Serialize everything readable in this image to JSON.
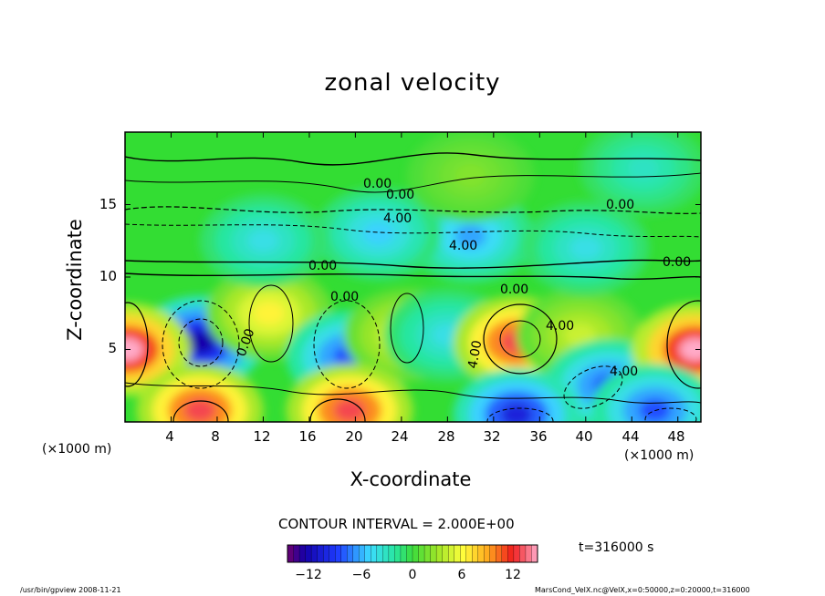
{
  "title": "zonal velocity",
  "axes": {
    "xlabel": "X-coordinate",
    "ylabel": "Z-coordinate",
    "x_unit": "(×1000 m)",
    "y_unit": "(×1000 m)",
    "xticks": [
      "4",
      "8",
      "12",
      "16",
      "20",
      "24",
      "28",
      "32",
      "36",
      "40",
      "44",
      "48"
    ],
    "yticks": [
      "5",
      "10",
      "15"
    ]
  },
  "contour_interval_text": "CONTOUR INTERVAL = 2.000E+00",
  "time_text": "t=316000 s",
  "colorbar": {
    "labels": [
      "−12",
      "−6",
      "0",
      "6",
      "12"
    ]
  },
  "footer": {
    "left": "/usr/bin/gpview   2008-11-21",
    "right": "MarsCond_VelX.nc@VelX,x=0:50000,z=0:20000,t=316000"
  },
  "contour_labels": [
    "0.00",
    "0.00",
    "4.00",
    "4.00",
    "0.00",
    "0.00",
    "0.00",
    "4.00",
    "4.00",
    "0.00",
    "4.00",
    "0.00",
    "0.00"
  ],
  "chart_data": {
    "type": "heatmap",
    "title": "zonal velocity",
    "xlabel": "X-coordinate",
    "ylabel": "Z-coordinate",
    "x_range": [
      0,
      50
    ],
    "y_range": [
      0,
      20
    ],
    "x_ticks": [
      4,
      8,
      12,
      16,
      20,
      24,
      28,
      32,
      36,
      40,
      44,
      48
    ],
    "y_ticks": [
      5,
      10,
      15
    ],
    "color_range": [
      -14,
      14
    ],
    "contour_interval": 2.0,
    "colorbar_ticks": [
      -12,
      -6,
      0,
      6,
      12
    ],
    "features": [
      {
        "x": 6.5,
        "z": 5.5,
        "value": -12
      },
      {
        "x": 12.5,
        "z": 7.5,
        "value": 6
      },
      {
        "x": 19.5,
        "z": 4.5,
        "value": -8
      },
      {
        "x": 24.5,
        "z": 6.0,
        "value": 5
      },
      {
        "x": 28.0,
        "z": 6.0,
        "value": -4
      },
      {
        "x": 34.0,
        "z": 5.5,
        "value": 12
      },
      {
        "x": 39.5,
        "z": 6.0,
        "value": 4
      },
      {
        "x": 42.0,
        "z": 2.5,
        "value": -8
      },
      {
        "x": 49.5,
        "z": 5.0,
        "value": 14
      },
      {
        "x": 0.2,
        "z": 5.0,
        "value": 14
      },
      {
        "x": 6.5,
        "z": 0.8,
        "value": 12
      },
      {
        "x": 19.5,
        "z": 0.8,
        "value": 12
      },
      {
        "x": 34.0,
        "z": 0.5,
        "value": -10
      },
      {
        "x": 46.0,
        "z": 0.8,
        "value": -8
      },
      {
        "x": 30.0,
        "z": 12.8,
        "value": -6
      },
      {
        "x": 22.0,
        "z": 13.0,
        "value": -5
      },
      {
        "x": 12.0,
        "z": 12.5,
        "value": -4
      },
      {
        "x": 40.0,
        "z": 12.0,
        "value": -4
      },
      {
        "x": 45.0,
        "z": 17.5,
        "value": -3
      },
      {
        "x": 30.0,
        "z": 17.0,
        "value": 2
      }
    ]
  }
}
